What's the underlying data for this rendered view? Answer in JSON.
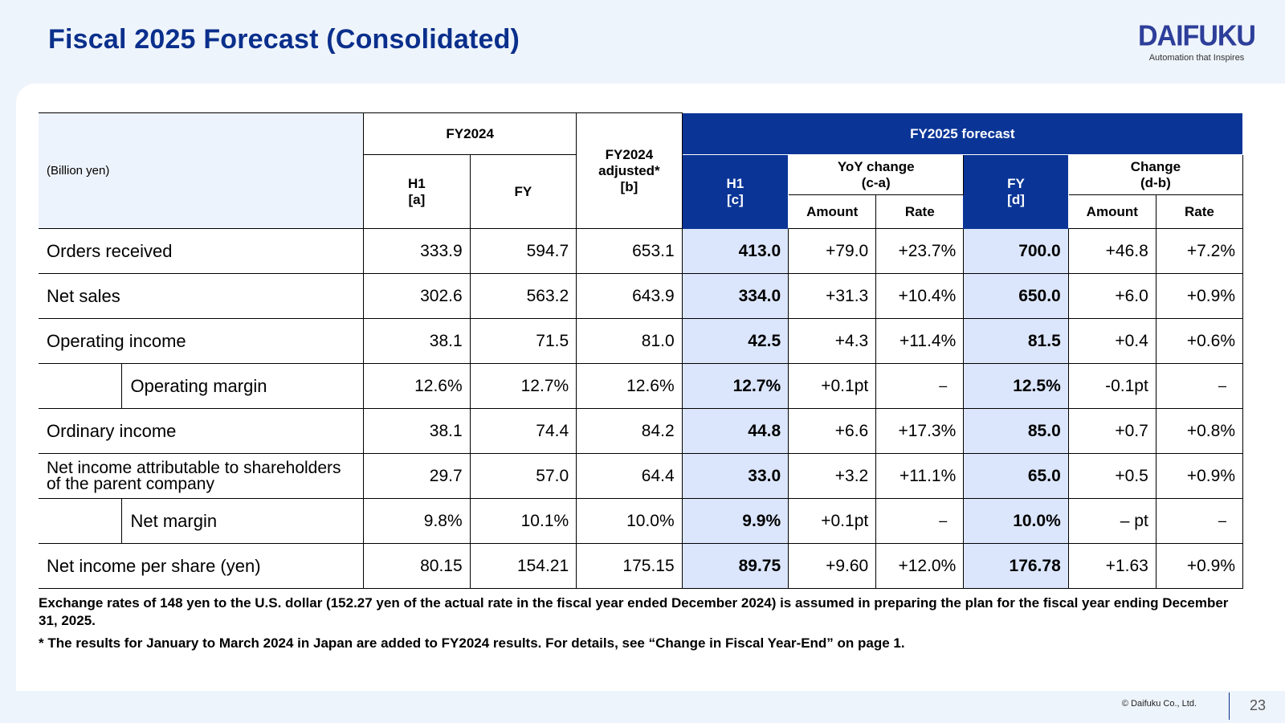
{
  "title": "Fiscal 2025 Forecast (Consolidated)",
  "brand": {
    "name": "DAIFUKU",
    "tagline": "Automation that Inspires"
  },
  "table": {
    "unit": "(Billion yen)",
    "headers": {
      "fy2024": "FY2024",
      "h1a_line1": "H1",
      "h1a_line2": "[a]",
      "fy": "FY",
      "adj_line1": "FY2024",
      "adj_line2": "adjusted*",
      "adj_line3": "[b]",
      "forecast": "FY2025 forecast",
      "h1c_line1": "H1",
      "h1c_line2": "[c]",
      "yoy_line1": "YoY change",
      "yoy_line2": "(c-a)",
      "fyd_line1": "FY",
      "fyd_line2": "[d]",
      "chg_line1": "Change",
      "chg_line2": "(d-b)",
      "amount": "Amount",
      "rate": "Rate"
    },
    "rows": [
      {
        "label": "Orders received",
        "h1a": "333.9",
        "fy": "594.7",
        "adj": "653.1",
        "h1c": "413.0",
        "yoy_amt": "+79.0",
        "yoy_rate": "+23.7%",
        "fyd": "700.0",
        "chg_amt": "+46.8",
        "chg_rate": "+7.2%"
      },
      {
        "label": "Net sales",
        "h1a": "302.6",
        "fy": "563.2",
        "adj": "643.9",
        "h1c": "334.0",
        "yoy_amt": "+31.3",
        "yoy_rate": "+10.4%",
        "fyd": "650.0",
        "chg_amt": "+6.0",
        "chg_rate": "+0.9%"
      },
      {
        "label": "Operating income",
        "h1a": "38.1",
        "fy": "71.5",
        "adj": "81.0",
        "h1c": "42.5",
        "yoy_amt": "+4.3",
        "yoy_rate": "+11.4%",
        "fyd": "81.5",
        "chg_amt": "+0.4",
        "chg_rate": "+0.6%"
      },
      {
        "label": "Operating margin",
        "h1a": "12.6%",
        "fy": "12.7%",
        "adj": "12.6%",
        "h1c": "12.7%",
        "yoy_amt": "+0.1pt",
        "yoy_rate": "–",
        "fyd": "12.5%",
        "chg_amt": "-0.1pt",
        "chg_rate": "–"
      },
      {
        "label": "Ordinary income",
        "h1a": "38.1",
        "fy": "74.4",
        "adj": "84.2",
        "h1c": "44.8",
        "yoy_amt": "+6.6",
        "yoy_rate": "+17.3%",
        "fyd": "85.0",
        "chg_amt": "+0.7",
        "chg_rate": "+0.8%"
      },
      {
        "label": "Net income attributable to shareholders of the parent company",
        "h1a": "29.7",
        "fy": "57.0",
        "adj": "64.4",
        "h1c": "33.0",
        "yoy_amt": "+3.2",
        "yoy_rate": "+11.1%",
        "fyd": "65.0",
        "chg_amt": "+0.5",
        "chg_rate": "+0.9%"
      },
      {
        "label": "Net margin",
        "h1a": "9.8%",
        "fy": "10.1%",
        "adj": "10.0%",
        "h1c": "9.9%",
        "yoy_amt": "+0.1pt",
        "yoy_rate": "–",
        "fyd": "10.0%",
        "chg_amt": "– pt",
        "chg_rate": "–"
      },
      {
        "label": "Net income per share (yen)",
        "h1a": "80.15",
        "fy": "154.21",
        "adj": "175.15",
        "h1c": "89.75",
        "yoy_amt": "+9.60",
        "yoy_rate": "+12.0%",
        "fyd": "176.78",
        "chg_amt": "+1.63",
        "chg_rate": "+0.9%"
      }
    ]
  },
  "notes": {
    "exchange": "Exchange rates of 148 yen to the U.S. dollar (152.27 yen of the actual rate in the fiscal year ended December 2024) is assumed in preparing the plan for the fiscal year ending December 31, 2025.",
    "asterisk": "* The results for January to March 2024 in Japan are added to FY2024 results. For details, see “Change in Fiscal Year-End” on page 1."
  },
  "footer": {
    "copyright": "© Daifuku Co., Ltd.",
    "page": "23"
  },
  "colors": {
    "navy": "#0a3597",
    "title": "#0a2f8c",
    "highlight": "#dbe6fc",
    "header_bg": "#edf3fc"
  }
}
